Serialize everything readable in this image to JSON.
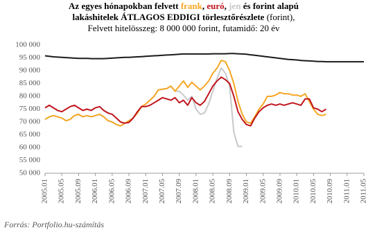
{
  "chart_data": {
    "type": "line",
    "title": [
      "Az egyes hónapokban felvett ",
      ", ",
      " és ",
      " alapú",
      "lakáshitelek ÁTLAGOS EDDIGI törlesztőrészlete",
      " (forint),"
    ],
    "subtitle": "Felvett hitelösszeg: 8 000 000 forint, futamidő: 20 év",
    "source": "Forrás: Portfolio.hu-számítás",
    "categories": [
      "2005.01",
      null,
      null,
      null,
      "2005.05",
      null,
      null,
      null,
      "2005.09",
      null,
      null,
      null,
      "2006.01",
      null,
      null,
      null,
      "2006.05",
      null,
      null,
      null,
      "2006.09",
      null,
      null,
      null,
      "2007.01",
      null,
      null,
      null,
      "2007.05",
      null,
      null,
      null,
      "2007.09",
      null,
      null,
      null,
      "2008.01",
      null,
      null,
      null,
      "2008.05",
      null,
      null,
      null,
      "2008.09",
      null,
      null,
      null,
      "2009.01",
      null,
      null,
      null,
      "2009.05",
      null,
      null,
      null,
      "2009.09",
      null,
      null,
      null,
      "2010.01",
      null,
      null,
      null,
      "2010.05",
      null,
      null,
      null,
      "2010.09",
      null,
      null,
      null,
      "2011.01",
      null,
      null,
      null,
      "2011.05"
    ],
    "series": [
      {
        "name": "frank",
        "color": "#f5a623",
        "values": [
          71000,
          72000,
          72500,
          72000,
          71500,
          70500,
          71000,
          72500,
          73000,
          72000,
          72500,
          72000,
          72500,
          73000,
          72000,
          70500,
          70000,
          69000,
          68500,
          69500,
          70500,
          71500,
          73500,
          76000,
          77000,
          78500,
          80000,
          82500,
          82800,
          83000,
          84000,
          82000,
          84000,
          86000,
          83500,
          85500,
          84000,
          82500,
          84000,
          86000,
          89000,
          91000,
          94000,
          93500,
          90000,
          85000,
          78000,
          73000,
          70000,
          69500,
          72000,
          75000,
          77000,
          80000,
          80000,
          80500,
          81500,
          81000,
          81000,
          80500,
          80500,
          80000,
          81000,
          78000,
          75000,
          73000,
          72500,
          73000,
          null,
          null,
          null,
          null,
          null,
          null,
          null,
          null,
          null
        ]
      },
      {
        "name": "euró",
        "color": "#c0141c",
        "values": [
          75500,
          76500,
          75500,
          74500,
          74000,
          75000,
          76000,
          76500,
          75500,
          74500,
          75000,
          74500,
          75500,
          76000,
          74500,
          73500,
          73000,
          71500,
          70000,
          69500,
          69800,
          71500,
          74000,
          76000,
          76000,
          76500,
          77500,
          78500,
          79500,
          79000,
          78500,
          79500,
          77500,
          78500,
          76500,
          79500,
          77500,
          76500,
          78000,
          81000,
          84000,
          86000,
          87500,
          86500,
          85000,
          80000,
          74000,
          71000,
          69000,
          68500,
          71500,
          74000,
          75500,
          76500,
          77000,
          76500,
          77000,
          76500,
          77000,
          77500,
          77000,
          76500,
          79000,
          79000,
          75500,
          75000,
          74000,
          75000,
          null,
          null,
          null,
          null,
          null,
          null,
          null,
          null,
          null
        ]
      },
      {
        "name": "jen",
        "color": "#c8c8c8",
        "values": [
          71000,
          72000,
          72500,
          72000,
          71500,
          70500,
          71000,
          72500,
          73000,
          72000,
          72500,
          72000,
          72500,
          73000,
          72000,
          70500,
          70000,
          69000,
          68500,
          69500,
          70500,
          71500,
          73500,
          76000,
          77000,
          78500,
          80000,
          82500,
          82800,
          83000,
          84000,
          82000,
          82000,
          80500,
          78500,
          80000,
          75000,
          73000,
          73500,
          77000,
          82000,
          87000,
          91000,
          89000,
          84000,
          66000,
          60500,
          60500,
          null,
          null,
          null,
          null,
          null,
          null,
          null,
          null,
          null,
          null,
          null,
          null,
          null,
          null,
          null,
          null,
          null,
          null,
          null,
          null,
          null,
          null,
          null,
          null,
          null,
          null,
          null,
          null,
          null
        ]
      },
      {
        "name": "forint",
        "color": "#1a1a1a",
        "values": [
          95800,
          95600,
          95400,
          95300,
          95200,
          95100,
          95000,
          94900,
          94800,
          94800,
          94800,
          94700,
          94700,
          94700,
          94700,
          94800,
          94900,
          95000,
          95100,
          95200,
          95200,
          95300,
          95400,
          95500,
          95600,
          95700,
          95800,
          95900,
          96000,
          96100,
          96200,
          96300,
          96400,
          96500,
          96500,
          96500,
          96500,
          96500,
          96500,
          96500,
          96600,
          96600,
          96600,
          96600,
          96700,
          96700,
          96600,
          96500,
          96400,
          96200,
          96000,
          95800,
          95600,
          95400,
          95200,
          95000,
          94800,
          94600,
          94400,
          94300,
          94200,
          94000,
          93900,
          93800,
          93700,
          93600,
          93600,
          93500,
          93500,
          93500,
          93500,
          93500,
          93500,
          93500,
          93500,
          93500,
          93500
        ]
      }
    ],
    "ylim": [
      50000,
      100000
    ],
    "yticks": [
      {
        "value": 50000,
        "label": "50 000"
      },
      {
        "value": 55000,
        "label": "55 000"
      },
      {
        "value": 60000,
        "label": "60 000"
      },
      {
        "value": 65000,
        "label": "65 000"
      },
      {
        "value": 70000,
        "label": "70 000"
      },
      {
        "value": 75000,
        "label": "75 000"
      },
      {
        "value": 80000,
        "label": "80 000"
      },
      {
        "value": 85000,
        "label": "85 000"
      },
      {
        "value": 90000,
        "label": "90 000"
      },
      {
        "value": 95000,
        "label": "95 000"
      },
      {
        "value": 100000,
        "label": "100 000"
      }
    ],
    "grid": false
  }
}
